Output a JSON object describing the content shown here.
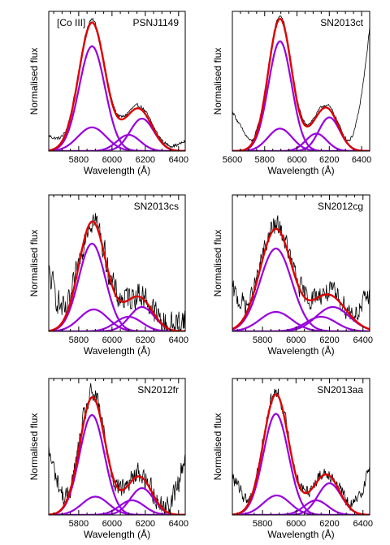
{
  "chart_data": [
    {
      "type": "line",
      "title": "PSNJ1149",
      "annotation": "[Co III]",
      "xlabel": "Wavelength (Å)",
      "ylabel": "Normalised flux",
      "xlim": [
        5620,
        6440
      ],
      "xticks": [
        5800,
        6000,
        6200,
        6400
      ],
      "ylim": [
        0,
        1.12
      ],
      "components": [
        {
          "center": 5880,
          "amp": 0.84,
          "sigma": 78
        },
        {
          "center": 5880,
          "amp": 0.19,
          "sigma": 85
        },
        {
          "center": 6100,
          "amp": 0.13,
          "sigma": 70
        },
        {
          "center": 6180,
          "amp": 0.26,
          "sigma": 72
        }
      ],
      "fit_amp_scale": 1.0,
      "observed_noise": 0.012,
      "observed_edge_left": 0.1,
      "observed_edge_right": 0.06
    },
    {
      "type": "line",
      "title": "SN2013ct",
      "annotation": "",
      "xlabel": "Wavelength (Å)",
      "ylabel": "Normalised flux",
      "xlim": [
        5600,
        6450
      ],
      "xticks": [
        5600,
        5700,
        5800,
        5900,
        6000,
        6100,
        6200,
        6300,
        6400
      ],
      "xticklabels": [
        "5600",
        "",
        "5800",
        "",
        "6000",
        "",
        "6200",
        "",
        "6400"
      ],
      "ylim": [
        0,
        1.12
      ],
      "components": [
        {
          "center": 5895,
          "amp": 0.88,
          "sigma": 72
        },
        {
          "center": 5895,
          "amp": 0.18,
          "sigma": 75
        },
        {
          "center": 6120,
          "amp": 0.14,
          "sigma": 65
        },
        {
          "center": 6200,
          "amp": 0.27,
          "sigma": 65
        }
      ],
      "fit_amp_scale": 1.0,
      "observed_noise": 0.012,
      "observed_edge_left": 0.25,
      "observed_edge_right": 0.85
    },
    {
      "type": "line",
      "title": "SN2013cs",
      "annotation": "",
      "xlabel": "Wavelength (Å)",
      "ylabel": "Normalised flux",
      "xlim": [
        5620,
        6440
      ],
      "xticks": [
        5800,
        6000,
        6200,
        6400
      ],
      "ylim": [
        0,
        1.12
      ],
      "components": [
        {
          "center": 5880,
          "amp": 0.72,
          "sigma": 80
        },
        {
          "center": 5890,
          "amp": 0.18,
          "sigma": 85
        },
        {
          "center": 6100,
          "amp": 0.12,
          "sigma": 80
        },
        {
          "center": 6180,
          "amp": 0.2,
          "sigma": 75
        }
      ],
      "fit_amp_scale": 1.0,
      "observed_noise": 0.1,
      "observed_edge_left": 0.45,
      "observed_edge_right": 0.1
    },
    {
      "type": "line",
      "title": "SN2012cg",
      "annotation": "",
      "xlabel": "Wavelength (Å)",
      "ylabel": "Normalised flux",
      "xlim": [
        5620,
        6440
      ],
      "xticks": [
        5800,
        6000,
        6200,
        6400
      ],
      "ylim": [
        0,
        1.12
      ],
      "components": [
        {
          "center": 5880,
          "amp": 0.68,
          "sigma": 95
        },
        {
          "center": 5880,
          "amp": 0.16,
          "sigma": 95
        },
        {
          "center": 6150,
          "amp": 0.12,
          "sigma": 90
        },
        {
          "center": 6220,
          "amp": 0.2,
          "sigma": 100
        }
      ],
      "fit_amp_scale": 1.0,
      "observed_noise": 0.08,
      "observed_edge_left": 0.3,
      "observed_edge_right": 0.3
    },
    {
      "type": "line",
      "title": "SN2012fr",
      "annotation": "",
      "xlabel": "Wavelength (Å)",
      "ylabel": "Normalised flux",
      "xlim": [
        5620,
        6440
      ],
      "xticks": [
        5800,
        6000,
        6200,
        6400
      ],
      "ylim": [
        0,
        1.12
      ],
      "components": [
        {
          "center": 5880,
          "amp": 0.82,
          "sigma": 75
        },
        {
          "center": 5900,
          "amp": 0.15,
          "sigma": 80
        },
        {
          "center": 6120,
          "amp": 0.12,
          "sigma": 75
        },
        {
          "center": 6180,
          "amp": 0.22,
          "sigma": 70
        }
      ],
      "fit_amp_scale": 1.0,
      "observed_noise": 0.08,
      "observed_edge_left": 0.5,
      "observed_edge_right": 0.5
    },
    {
      "type": "line",
      "title": "SN2013aa",
      "annotation": "",
      "xlabel": "Wavelength (Å)",
      "ylabel": "Normalised flux",
      "xlim": [
        5620,
        6440
      ],
      "xticks": [
        5800,
        6000,
        6200,
        6400
      ],
      "ylim": [
        0,
        1.12
      ],
      "components": [
        {
          "center": 5880,
          "amp": 0.83,
          "sigma": 75
        },
        {
          "center": 5885,
          "amp": 0.16,
          "sigma": 80
        },
        {
          "center": 6120,
          "amp": 0.12,
          "sigma": 70
        },
        {
          "center": 6200,
          "amp": 0.26,
          "sigma": 70
        }
      ],
      "fit_amp_scale": 1.0,
      "observed_noise": 0.05,
      "observed_edge_left": 0.3,
      "observed_edge_right": 0.4
    }
  ],
  "colors": {
    "observed": "#000000",
    "fit": "#dd0000",
    "component": "#9900dd",
    "axes": "#000000"
  }
}
